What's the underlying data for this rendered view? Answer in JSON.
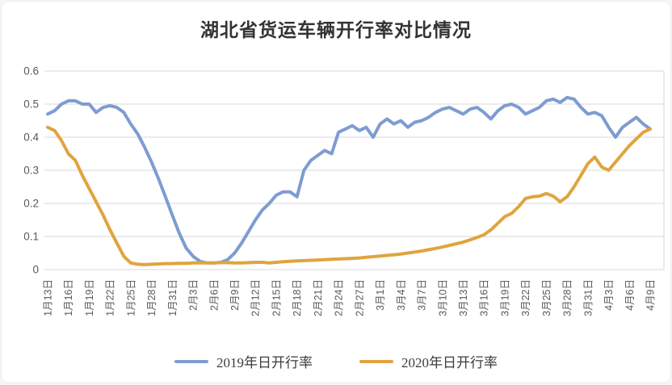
{
  "title": "湖北省货运车辆开行率对比情况",
  "colors": {
    "series_2019": "#7e9cd1",
    "series_2020": "#e0a43e",
    "gridline": "#d9d9d9",
    "axis_text": "#595959",
    "title_text": "#333333"
  },
  "chart_data": {
    "type": "line",
    "title": "湖北省货运车辆开行率对比情况",
    "xlabel": "",
    "ylabel": "",
    "ylim": [
      0,
      0.6
    ],
    "y_ticks": [
      0,
      0.1,
      0.2,
      0.3,
      0.4,
      0.5,
      0.6
    ],
    "y_tick_labels": [
      "0",
      "0.1",
      "0.2",
      "0.3",
      "0.4",
      "0.5",
      "0.6"
    ],
    "grid": "horizontal",
    "legend_position": "bottom",
    "x_tick_every": 3,
    "x_tick_labels": [
      "1月13日",
      "1月16日",
      "1月19日",
      "1月22日",
      "1月25日",
      "1月28日",
      "1月31日",
      "2月3日",
      "2月6日",
      "2月9日",
      "2月12日",
      "2月15日",
      "2月18日",
      "2月21日",
      "2月24日",
      "2月27日",
      "3月1日",
      "3月4日",
      "3月7日",
      "3月10日",
      "3月13日",
      "3月16日",
      "3月19日",
      "3月22日",
      "3月25日",
      "3月28日",
      "3月31日",
      "4月3日",
      "4月6日",
      "4月9日"
    ],
    "series": [
      {
        "name": "2019年日开行率",
        "color": "#7e9cd1",
        "values": [
          0.47,
          0.48,
          0.5,
          0.51,
          0.51,
          0.5,
          0.5,
          0.475,
          0.49,
          0.495,
          0.49,
          0.475,
          0.44,
          0.41,
          0.37,
          0.325,
          0.275,
          0.22,
          0.165,
          0.11,
          0.065,
          0.04,
          0.025,
          0.02,
          0.02,
          0.022,
          0.03,
          0.05,
          0.08,
          0.115,
          0.15,
          0.18,
          0.2,
          0.225,
          0.235,
          0.235,
          0.22,
          0.3,
          0.33,
          0.345,
          0.36,
          0.35,
          0.415,
          0.425,
          0.435,
          0.42,
          0.43,
          0.4,
          0.44,
          0.455,
          0.44,
          0.45,
          0.43,
          0.445,
          0.45,
          0.46,
          0.475,
          0.485,
          0.49,
          0.48,
          0.47,
          0.485,
          0.49,
          0.475,
          0.455,
          0.48,
          0.495,
          0.5,
          0.49,
          0.47,
          0.48,
          0.49,
          0.51,
          0.515,
          0.505,
          0.52,
          0.515,
          0.49,
          0.47,
          0.475,
          0.465,
          0.43,
          0.4,
          0.43,
          0.445,
          0.46,
          0.44,
          0.425
        ]
      },
      {
        "name": "2020年日开行率",
        "color": "#e0a43e",
        "values": [
          0.43,
          0.42,
          0.39,
          0.35,
          0.33,
          0.285,
          0.245,
          0.205,
          0.165,
          0.12,
          0.08,
          0.04,
          0.02,
          0.016,
          0.015,
          0.016,
          0.017,
          0.018,
          0.018,
          0.019,
          0.019,
          0.02,
          0.02,
          0.02,
          0.02,
          0.021,
          0.021,
          0.02,
          0.02,
          0.021,
          0.022,
          0.022,
          0.02,
          0.022,
          0.024,
          0.025,
          0.026,
          0.027,
          0.028,
          0.029,
          0.03,
          0.031,
          0.032,
          0.033,
          0.034,
          0.035,
          0.037,
          0.039,
          0.041,
          0.043,
          0.045,
          0.047,
          0.05,
          0.053,
          0.056,
          0.06,
          0.064,
          0.068,
          0.073,
          0.078,
          0.083,
          0.09,
          0.097,
          0.105,
          0.12,
          0.14,
          0.16,
          0.17,
          0.19,
          0.215,
          0.22,
          0.222,
          0.23,
          0.222,
          0.205,
          0.22,
          0.25,
          0.285,
          0.32,
          0.34,
          0.31,
          0.3,
          0.325,
          0.35,
          0.375,
          0.395,
          0.415,
          0.425
        ]
      }
    ]
  },
  "legend": {
    "item_2019": "2019年日开行率",
    "item_2020": "2020年日开行率"
  }
}
